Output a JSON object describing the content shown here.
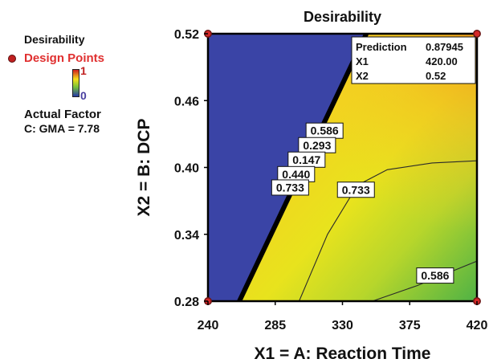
{
  "legend": {
    "title": "Desirability",
    "design_points_label": "Design Points",
    "scale_max": "1",
    "scale_min": "0",
    "actual_factor_title": "Actual Factor",
    "actual_factor_value": "C: GMA = 7.78"
  },
  "chart_data": {
    "type": "heatmap",
    "title": "Desirability",
    "xlabel": "X1 = A: Reaction Time",
    "ylabel": "X2 = B: DCP",
    "xlim": [
      240,
      420
    ],
    "ylim": [
      0.28,
      0.52
    ],
    "x_ticks": [
      "240",
      "285",
      "330",
      "375",
      "420"
    ],
    "y_ticks": [
      "0.28",
      "0.34",
      "0.40",
      "0.46",
      "0.52"
    ],
    "x_tick_values": [
      240,
      285,
      330,
      375,
      420
    ],
    "y_tick_values": [
      0.28,
      0.34,
      0.4,
      0.46,
      0.52
    ],
    "infeasible_color": "#3a44a6",
    "grid": false,
    "feasibility_boundary": [
      {
        "x": 261,
        "y": 0.28
      },
      {
        "x": 346,
        "y": 0.52
      }
    ],
    "contours": [
      {
        "level": "0.733",
        "points": [
          {
            "x": 301,
            "y": 0.28
          },
          {
            "x": 320,
            "y": 0.34
          },
          {
            "x": 340,
            "y": 0.384
          },
          {
            "x": 360,
            "y": 0.398
          },
          {
            "x": 390,
            "y": 0.404
          },
          {
            "x": 420,
            "y": 0.406
          }
        ]
      },
      {
        "level": "0.586",
        "points": [
          {
            "x": 350,
            "y": 0.28
          },
          {
            "x": 380,
            "y": 0.294
          },
          {
            "x": 400,
            "y": 0.305
          },
          {
            "x": 420,
            "y": 0.316
          }
        ]
      }
    ],
    "contour_labels": [
      {
        "text": "0.586",
        "x": 318,
        "y": 0.433
      },
      {
        "text": "0.293",
        "x": 313,
        "y": 0.42
      },
      {
        "text": "0.147",
        "x": 306,
        "y": 0.407
      },
      {
        "text": "0.440",
        "x": 299,
        "y": 0.394
      },
      {
        "text": "0.733",
        "x": 295,
        "y": 0.382
      },
      {
        "text": "0.733",
        "x": 339,
        "y": 0.38
      },
      {
        "text": "0.586",
        "x": 392,
        "y": 0.303
      }
    ],
    "design_points": [
      {
        "x": 240,
        "y": 0.52
      },
      {
        "x": 420,
        "y": 0.52
      },
      {
        "x": 240,
        "y": 0.28
      },
      {
        "x": 420,
        "y": 0.28
      }
    ],
    "prediction_box": {
      "rows": [
        {
          "label": "Prediction",
          "value": "0.87945"
        },
        {
          "label": "X1",
          "value": "420.00"
        },
        {
          "label": "X2",
          "value": "0.52"
        }
      ]
    }
  }
}
